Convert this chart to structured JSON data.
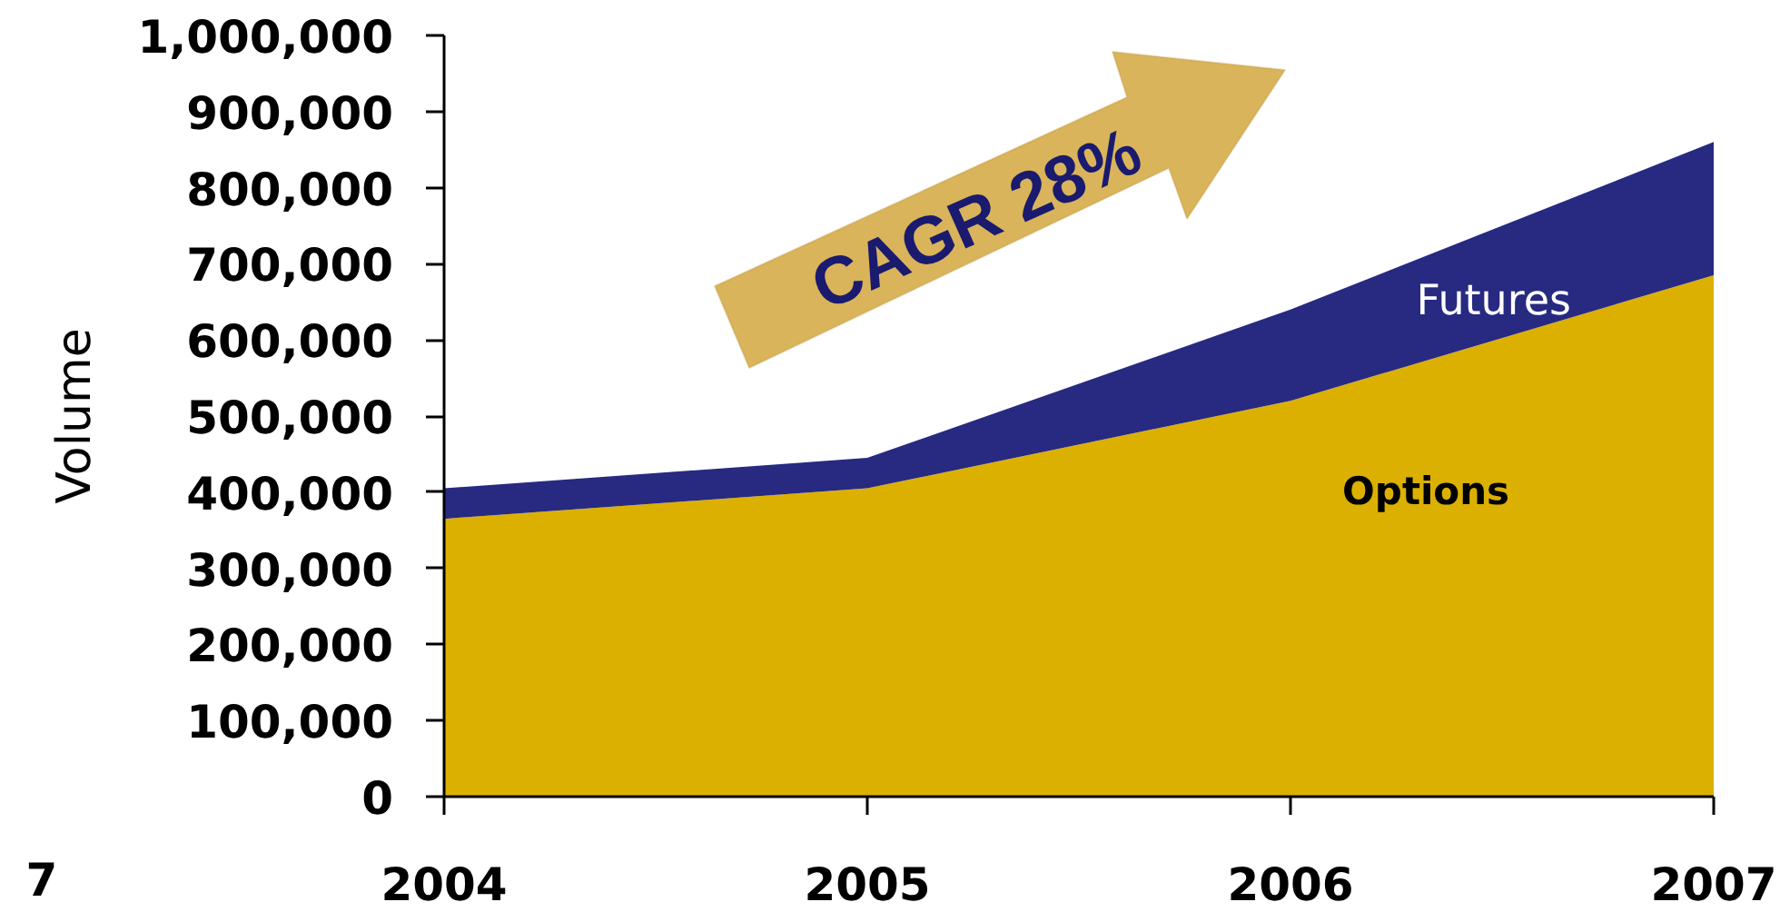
{
  "chart_data": {
    "type": "area",
    "stacked": true,
    "ylabel": "Volume",
    "categories": [
      "2004",
      "2005",
      "2006",
      "2007"
    ],
    "series": [
      {
        "name": "Options",
        "color": "#dcb000",
        "values": [
          365000,
          405000,
          520000,
          685000
        ]
      },
      {
        "name": "Futures",
        "color": "#272a80",
        "values": [
          40000,
          40000,
          120000,
          175000
        ]
      }
    ],
    "ylim": [
      0,
      1000000
    ],
    "yticks": [
      0,
      {
        "value": 100000,
        "label": "100,000"
      },
      {
        "value": 200000,
        "label": "200,000"
      },
      {
        "value": 300000,
        "label": "300,000"
      },
      {
        "value": 400000,
        "label": "400,000"
      },
      {
        "value": 500000,
        "label": "500,000"
      },
      {
        "value": 600000,
        "label": "600,000"
      },
      {
        "value": 700000,
        "label": "700,000"
      },
      {
        "value": 800000,
        "label": "800,000"
      },
      {
        "value": 900000,
        "label": "900,000"
      },
      {
        "value": 1000000,
        "label": "1,000,000"
      }
    ],
    "grid": false,
    "legend": false,
    "annotations": [
      "CAGR 28%",
      "7"
    ]
  }
}
